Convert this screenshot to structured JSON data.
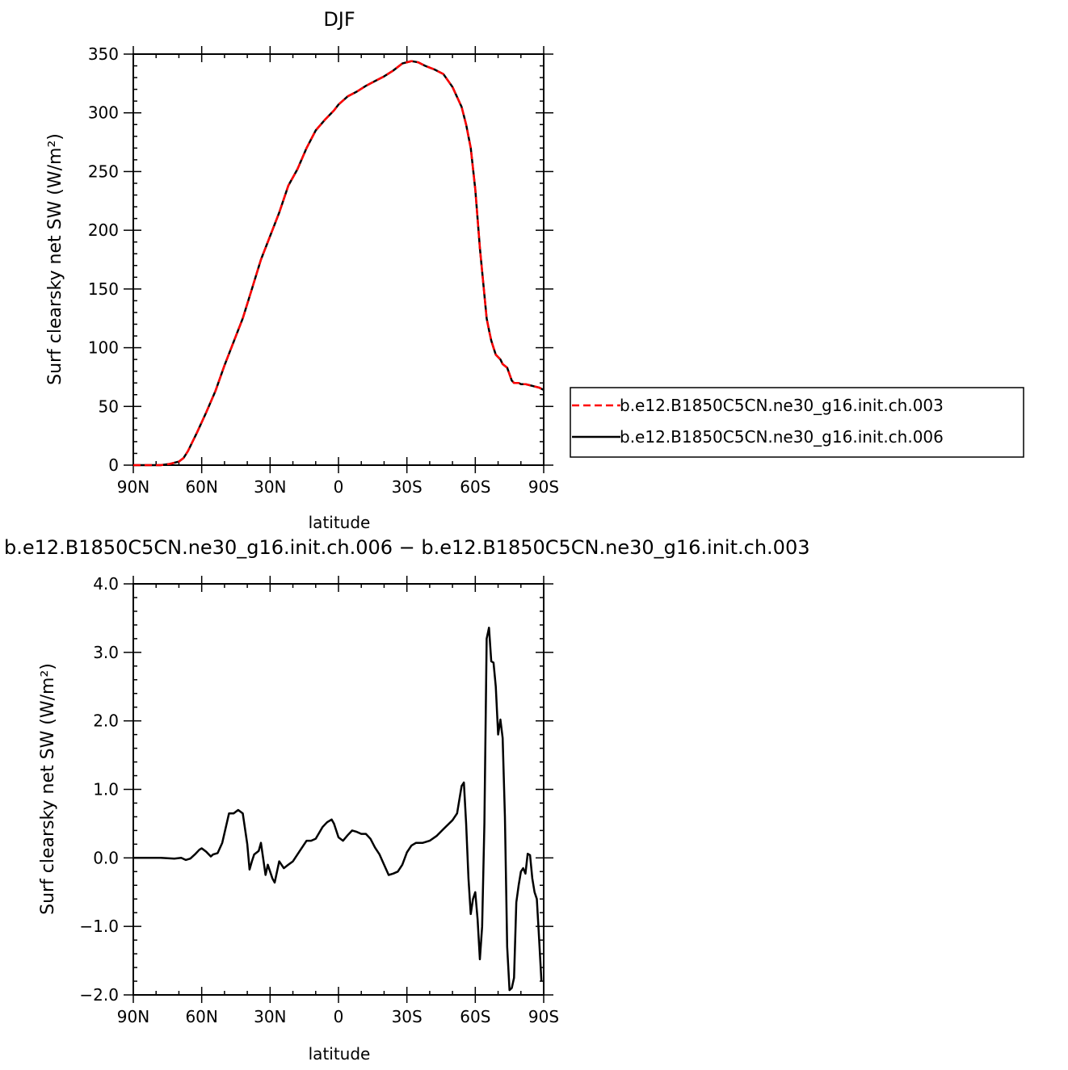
{
  "chart_data": [
    {
      "type": "line",
      "title": "DJF",
      "xlabel": "latitude",
      "ylabel": "Surf clearsky net SW (W/m²)",
      "xlim": [
        90,
        -90
      ],
      "ylim": [
        0,
        350
      ],
      "x_ticks": [
        {
          "value": 90,
          "label": "90N"
        },
        {
          "value": 60,
          "label": "60N"
        },
        {
          "value": 30,
          "label": "30N"
        },
        {
          "value": 0,
          "label": "0"
        },
        {
          "value": -30,
          "label": "30S"
        },
        {
          "value": -60,
          "label": "60S"
        },
        {
          "value": -90,
          "label": "90S"
        }
      ],
      "y_ticks": [
        0,
        50,
        100,
        150,
        200,
        250,
        300,
        350
      ],
      "legend": "right",
      "series": [
        {
          "name": "b.e12.B1850C5CN.ne30_g16.init.ch.003",
          "color": "#ff0000",
          "style": "dashed",
          "x": [
            90,
            84,
            78,
            74,
            70,
            68,
            66,
            62,
            58,
            54,
            50,
            46,
            42,
            38,
            34,
            30,
            26,
            22,
            18,
            14,
            10,
            6,
            2,
            0,
            -4,
            -8,
            -12,
            -16,
            -20,
            -24,
            -28,
            -32,
            -35,
            -38,
            -42,
            -46,
            -50,
            -54,
            -56,
            -58,
            -60,
            -62,
            -64,
            -65,
            -66,
            -67,
            -68,
            -69,
            -70,
            -71,
            -72,
            -74,
            -76,
            -77,
            -78,
            -79,
            -80,
            -82,
            -84,
            -86,
            -88,
            -90
          ],
          "values": [
            0,
            0,
            0,
            1,
            3,
            6,
            12,
            28,
            45,
            63,
            85,
            105,
            125,
            150,
            175,
            195,
            215,
            238,
            252,
            270,
            285,
            294,
            302,
            307,
            314,
            318,
            323,
            327,
            331,
            336,
            342,
            344,
            343,
            340,
            337,
            333,
            322,
            305,
            290,
            270,
            235,
            185,
            145,
            125,
            115,
            106,
            100,
            94,
            92,
            90,
            86,
            83,
            72,
            70,
            70,
            70,
            69,
            69,
            68,
            67,
            66,
            64
          ]
        },
        {
          "name": "b.e12.B1850C5CN.ne30_g16.init.ch.006",
          "color": "#000000",
          "style": "solid",
          "x": [
            90,
            84,
            78,
            74,
            70,
            68,
            66,
            62,
            58,
            54,
            50,
            46,
            42,
            38,
            34,
            30,
            26,
            22,
            18,
            14,
            10,
            6,
            2,
            0,
            -4,
            -8,
            -12,
            -16,
            -20,
            -24,
            -28,
            -32,
            -35,
            -38,
            -42,
            -46,
            -50,
            -54,
            -56,
            -58,
            -60,
            -62,
            -64,
            -65,
            -66,
            -67,
            -68,
            -69,
            -70,
            -71,
            -72,
            -74,
            -76,
            -77,
            -78,
            -79,
            -80,
            -82,
            -84,
            -86,
            -88,
            -90
          ],
          "values": [
            0,
            0,
            0,
            1,
            3,
            6,
            12,
            28,
            45,
            63,
            85,
            105,
            125,
            150,
            175,
            195,
            215,
            238,
            252,
            270,
            285,
            294,
            302,
            307,
            314,
            318,
            323,
            327,
            331,
            336,
            342,
            344,
            343,
            340,
            337,
            333,
            322,
            305,
            290,
            270,
            235,
            185,
            145,
            125,
            115,
            106,
            100,
            94,
            92,
            90,
            86,
            83,
            72,
            70,
            70,
            70,
            69,
            69,
            68,
            67,
            66,
            64
          ]
        }
      ]
    },
    {
      "type": "line",
      "title": "b.e12.B1850C5CN.ne30_g16.init.ch.006 − b.e12.B1850C5CN.ne30_g16.init.ch.003",
      "xlabel": "latitude",
      "ylabel": "Surf clearsky net SW (W/m²)",
      "xlim": [
        90,
        -90
      ],
      "ylim": [
        -2.0,
        4.0
      ],
      "x_ticks": [
        {
          "value": 90,
          "label": "90N"
        },
        {
          "value": 60,
          "label": "60N"
        },
        {
          "value": 30,
          "label": "30N"
        },
        {
          "value": 0,
          "label": "0"
        },
        {
          "value": -30,
          "label": "30S"
        },
        {
          "value": -60,
          "label": "60S"
        },
        {
          "value": -90,
          "label": "90S"
        }
      ],
      "y_ticks": [
        "4.0",
        "3.0",
        "2.0",
        "1.0",
        "0.0",
        "−1.0",
        "−2.0"
      ],
      "series": [
        {
          "name": "",
          "color": "#000000",
          "style": "solid",
          "x": [
            90,
            84,
            78,
            72,
            69,
            67,
            65,
            63,
            61,
            60,
            58,
            56,
            55,
            53,
            51,
            48,
            46,
            44,
            42,
            40,
            39,
            38,
            37,
            35,
            34,
            32,
            31,
            29,
            28,
            26,
            24,
            22,
            20,
            17,
            14,
            12,
            10,
            7,
            5,
            3,
            2,
            0,
            -2,
            -4,
            -6,
            -8,
            -10,
            -12,
            -14,
            -16,
            -18,
            -20,
            -22,
            -24,
            -26,
            -28,
            -30,
            -32,
            -34,
            -37,
            -40,
            -43,
            -46,
            -50,
            -52,
            -54,
            -55,
            -56,
            -57,
            -58,
            -59,
            -60,
            -61,
            -62,
            -63,
            -64,
            -65,
            -66,
            -67,
            -68,
            -69,
            -70,
            -71,
            -72,
            -73,
            -74,
            -75,
            -76,
            -77,
            -78,
            -79,
            -80,
            -81,
            -82,
            -83,
            -84,
            -85,
            -86,
            -87,
            -88,
            -89
          ],
          "values": [
            0,
            0,
            0,
            -0.01,
            0,
            -0.03,
            -0.01,
            0.05,
            0.12,
            0.14,
            0.09,
            0.02,
            0.05,
            0.07,
            0.22,
            0.65,
            0.65,
            0.7,
            0.65,
            0.2,
            -0.17,
            -0.05,
            0.05,
            0.1,
            0.22,
            -0.25,
            -0.1,
            -0.3,
            -0.36,
            -0.05,
            -0.15,
            -0.1,
            -0.05,
            0.1,
            0.25,
            0.25,
            0.28,
            0.45,
            0.52,
            0.56,
            0.5,
            0.3,
            0.25,
            0.33,
            0.4,
            0.38,
            0.35,
            0.35,
            0.28,
            0.15,
            0.05,
            -0.1,
            -0.25,
            -0.23,
            -0.2,
            -0.1,
            0.08,
            0.18,
            0.22,
            0.22,
            0.25,
            0.32,
            0.42,
            0.55,
            0.65,
            1.05,
            1.1,
            0.5,
            -0.3,
            -0.82,
            -0.6,
            -0.5,
            -0.9,
            -1.48,
            -1.0,
            0.5,
            3.2,
            3.36,
            2.87,
            2.85,
            2.5,
            1.8,
            2.02,
            1.75,
            0.6,
            -1.3,
            -1.93,
            -1.9,
            -1.75,
            -0.65,
            -0.4,
            -0.2,
            -0.15,
            -0.23,
            0.06,
            0.04,
            -0.3,
            -0.5,
            -0.6,
            -1.2,
            -1.8
          ]
        }
      ]
    }
  ]
}
